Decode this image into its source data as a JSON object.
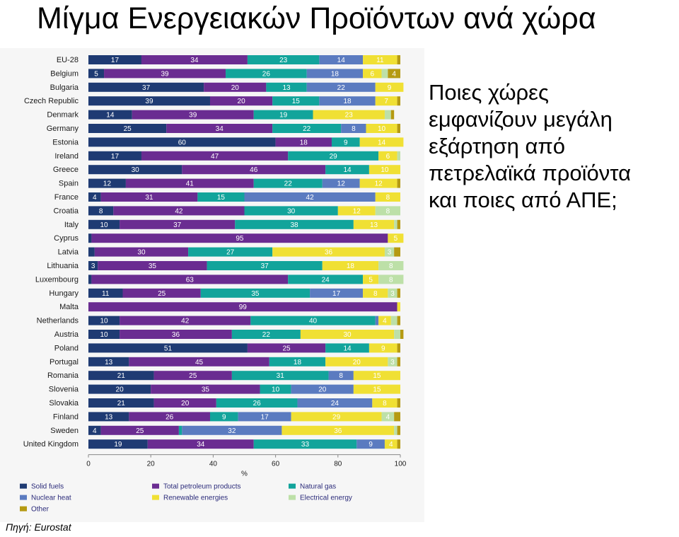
{
  "slide": {
    "title": "Μίγμα Ενεργειακών Προϊόντων ανά χώρα",
    "question_lines": [
      "Ποιες χώρες",
      "εμφανίζουν μεγάλη",
      "εξάρτηση από",
      "πετρελαϊκά προϊόντα",
      "και ποιες από ΑΠΕ;"
    ],
    "source": "Πηγή: Eurostat"
  },
  "chart_data": {
    "type": "bar",
    "orientation": "horizontal",
    "stacked": true,
    "xlabel": "%",
    "xlim": [
      0,
      100
    ],
    "x_ticks": [
      0,
      20,
      40,
      60,
      80,
      100
    ],
    "categories": [
      "EU-28",
      "Belgium",
      "Bulgaria",
      "Czech Republic",
      "Denmark",
      "Germany",
      "Estonia",
      "Ireland",
      "Greece",
      "Spain",
      "France",
      "Croatia",
      "Italy",
      "Cyprus",
      "Latvia",
      "Lithuania",
      "Luxembourg",
      "Hungary",
      "Malta",
      "Netherlands",
      "Austria",
      "Poland",
      "Portugal",
      "Romania",
      "Slovenia",
      "Slovakia",
      "Finland",
      "Sweden",
      "United Kingdom"
    ],
    "series": [
      {
        "name": "Solid fuels",
        "color": "#1f3b73",
        "values": [
          17,
          5,
          37,
          39,
          14,
          25,
          60,
          17,
          30,
          12,
          4,
          8,
          10,
          1,
          2,
          3,
          1,
          11,
          0,
          10,
          10,
          51,
          13,
          21,
          20,
          21,
          13,
          4,
          19
        ]
      },
      {
        "name": "Total petroleum products",
        "color": "#6a2c91",
        "values": [
          34,
          39,
          20,
          20,
          39,
          34,
          18,
          47,
          46,
          41,
          31,
          42,
          37,
          95,
          30,
          35,
          63,
          25,
          99,
          42,
          36,
          25,
          45,
          25,
          35,
          20,
          26,
          25,
          34
        ]
      },
      {
        "name": "Natural gas",
        "color": "#12a49b",
        "values": [
          23,
          26,
          13,
          15,
          19,
          22,
          9,
          29,
          14,
          22,
          15,
          30,
          38,
          0,
          27,
          37,
          24,
          35,
          0,
          40,
          22,
          14,
          18,
          31,
          10,
          26,
          9,
          1,
          33
        ]
      },
      {
        "name": "Nuclear heat",
        "color": "#5b7bc0",
        "values": [
          14,
          18,
          22,
          18,
          0,
          8,
          0,
          0,
          0,
          12,
          42,
          0,
          0,
          0,
          0,
          0,
          0,
          17,
          0,
          1,
          0,
          0,
          0,
          8,
          20,
          24,
          17,
          32,
          9
        ]
      },
      {
        "name": "Renewable energies",
        "color": "#f0e034",
        "values": [
          11,
          6,
          9,
          7,
          23,
          10,
          14,
          6,
          10,
          12,
          8,
          12,
          13,
          5,
          36,
          18,
          5,
          8,
          1,
          4,
          30,
          9,
          20,
          15,
          15,
          8,
          29,
          36,
          4
        ]
      },
      {
        "name": "Electrical energy",
        "color": "#bde0a8",
        "values": [
          0,
          2,
          0,
          0,
          2,
          0,
          0,
          1,
          0,
          0,
          0,
          8,
          1,
          0,
          3,
          8,
          8,
          3,
          0,
          2,
          2,
          0,
          3,
          0,
          0,
          0,
          4,
          1,
          0
        ]
      },
      {
        "name": "Other",
        "color": "#b59a12",
        "values": [
          1,
          4,
          0,
          1,
          1,
          1,
          0,
          0,
          0,
          1,
          0,
          0,
          1,
          0,
          2,
          0,
          0,
          1,
          0,
          1,
          1,
          1,
          1,
          0,
          0,
          1,
          2,
          1,
          1
        ]
      }
    ],
    "data_labels": [
      [
        "17",
        "34",
        "23",
        "14",
        "11",
        "",
        ""
      ],
      [
        "5",
        "39",
        "26",
        "18",
        "6",
        "",
        "4"
      ],
      [
        "37",
        "20",
        "13",
        "22",
        "9",
        "",
        ""
      ],
      [
        "39",
        "20",
        "15",
        "18",
        "7",
        "",
        ""
      ],
      [
        "14",
        "39",
        "19",
        "",
        "23",
        "",
        ""
      ],
      [
        "25",
        "34",
        "22",
        "8",
        "10",
        "",
        ""
      ],
      [
        "60",
        "18",
        "9",
        "",
        "14",
        "",
        ""
      ],
      [
        "17",
        "47",
        "29",
        "",
        "6",
        "",
        ""
      ],
      [
        "30",
        "46",
        "14",
        "",
        "10",
        "",
        ""
      ],
      [
        "12",
        "41",
        "22",
        "12",
        "12",
        "",
        ""
      ],
      [
        "4",
        "31",
        "15",
        "42",
        "8",
        "",
        ""
      ],
      [
        "8",
        "42",
        "30",
        "",
        "12",
        "8",
        ""
      ],
      [
        "10",
        "37",
        "38",
        "",
        "13",
        "",
        ""
      ],
      [
        "",
        "95",
        "",
        "",
        "5",
        "",
        ""
      ],
      [
        "",
        "30",
        "27",
        "",
        "36",
        "3",
        ""
      ],
      [
        "3",
        "35",
        "37",
        "",
        "18",
        "8",
        ""
      ],
      [
        "",
        "63",
        "24",
        "",
        "5",
        "8",
        ""
      ],
      [
        "11",
        "25",
        "35",
        "17",
        "8",
        "3",
        ""
      ],
      [
        "",
        "99",
        "",
        "",
        "",
        "",
        ""
      ],
      [
        "10",
        "42",
        "40",
        "",
        "4",
        "",
        ""
      ],
      [
        "10",
        "36",
        "22",
        "",
        "30",
        "",
        ""
      ],
      [
        "51",
        "25",
        "14",
        "",
        "9",
        "",
        ""
      ],
      [
        "13",
        "45",
        "18",
        "",
        "20",
        "3",
        ""
      ],
      [
        "21",
        "25",
        "31",
        "8",
        "15",
        "",
        ""
      ],
      [
        "20",
        "35",
        "10",
        "20",
        "15",
        "",
        ""
      ],
      [
        "21",
        "20",
        "26",
        "24",
        "8",
        "",
        ""
      ],
      [
        "13",
        "26",
        "9",
        "17",
        "29",
        "4",
        ""
      ],
      [
        "4",
        "25",
        "",
        "32",
        "36",
        "",
        ""
      ],
      [
        "19",
        "34",
        "33",
        "9",
        "4",
        "",
        ""
      ]
    ],
    "legend": [
      "Solid fuels",
      "Total petroleum products",
      "Natural gas",
      "Nuclear heat",
      "Renewable energies",
      "Electrical energy",
      "Other"
    ],
    "legend_position": "bottom"
  }
}
